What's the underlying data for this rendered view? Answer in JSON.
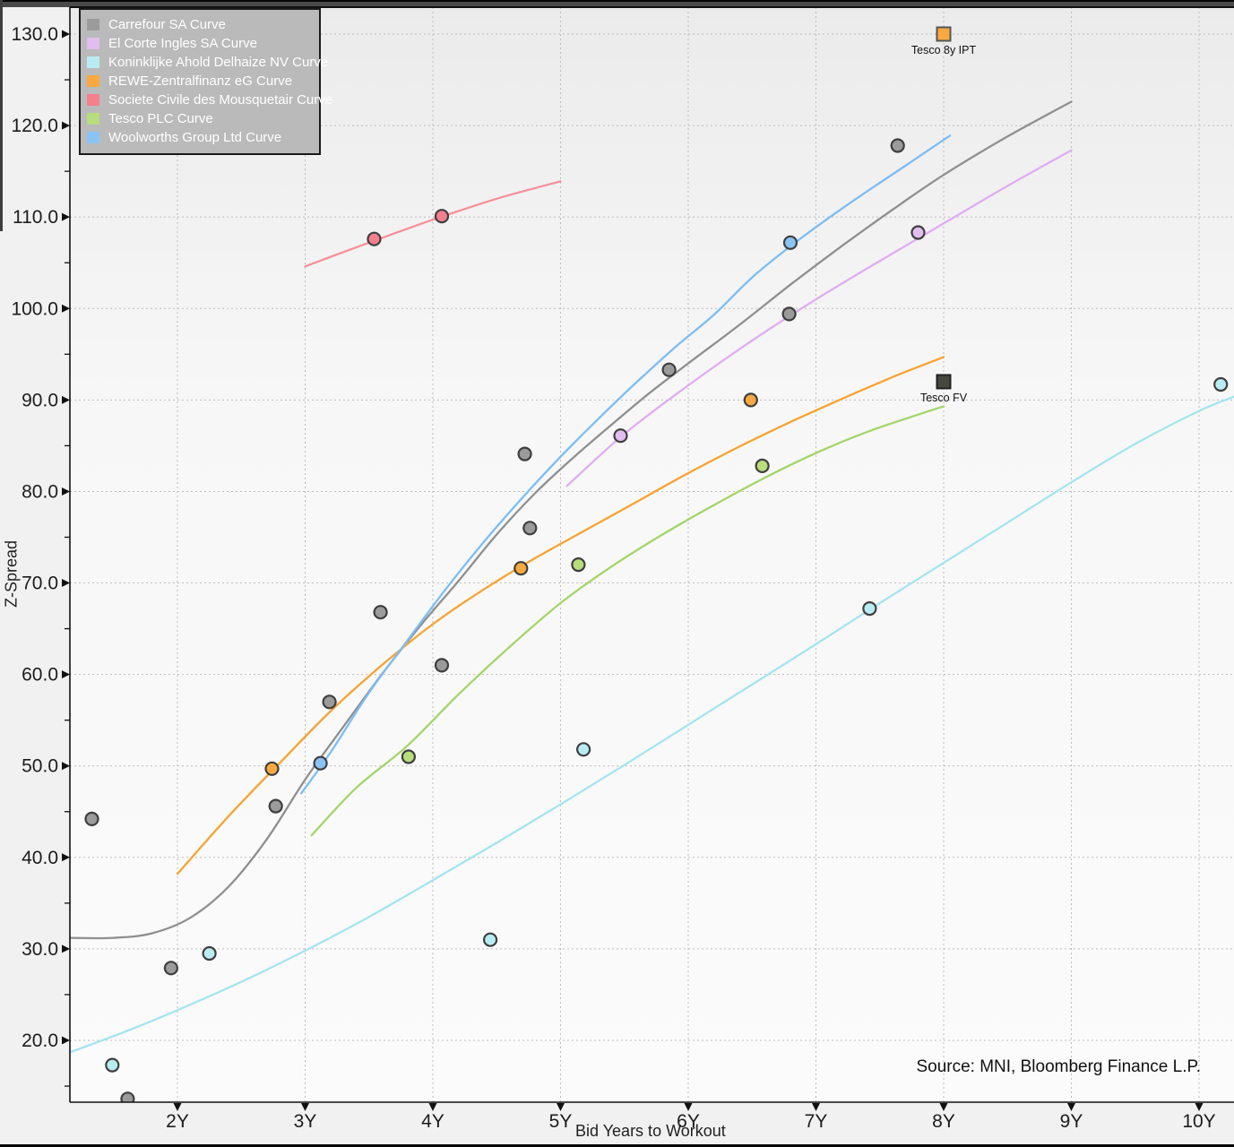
{
  "chart_data": {
    "type": "scatter",
    "title": "",
    "xlabel": "Bid Years to Workout",
    "ylabel": "Z-Spread",
    "source": "Source: MNI, Bloomberg Finance L.P.",
    "grid": true,
    "legend_position": "top-left",
    "xlim": [
      1.16,
      10.28
    ],
    "ylim": [
      13.2,
      132.9
    ],
    "x_ticks": [
      {
        "value": 2,
        "label": "2Y"
      },
      {
        "value": 3,
        "label": "3Y"
      },
      {
        "value": 4,
        "label": "4Y"
      },
      {
        "value": 5,
        "label": "5Y"
      },
      {
        "value": 6,
        "label": "6Y"
      },
      {
        "value": 7,
        "label": "7Y"
      },
      {
        "value": 8,
        "label": "8Y"
      },
      {
        "value": 9,
        "label": "9Y"
      },
      {
        "value": 10,
        "label": "10Y"
      }
    ],
    "y_ticks": [
      {
        "value": 20,
        "label": "20.0"
      },
      {
        "value": 30,
        "label": "30.0"
      },
      {
        "value": 40,
        "label": "40.0"
      },
      {
        "value": 50,
        "label": "50.0"
      },
      {
        "value": 60,
        "label": "60.0"
      },
      {
        "value": 70,
        "label": "70.0"
      },
      {
        "value": 80,
        "label": "80.0"
      },
      {
        "value": 90,
        "label": "90.0"
      },
      {
        "value": 100,
        "label": "100.0"
      },
      {
        "value": 110,
        "label": "110.0"
      },
      {
        "value": 120,
        "label": "120.0"
      },
      {
        "value": 130,
        "label": "130.0"
      }
    ],
    "y_minor_tick_step": 5,
    "series": [
      {
        "name": "Carrefour SA Curve",
        "marker_fill": "#9b9b9b",
        "line_color": "#8f8f8f",
        "points": [
          [
            1.33,
            44.2
          ],
          [
            1.61,
            13.6
          ],
          [
            1.95,
            27.9
          ],
          [
            2.77,
            45.6
          ],
          [
            3.19,
            57.0
          ],
          [
            3.59,
            66.8
          ],
          [
            4.07,
            61.0
          ],
          [
            4.72,
            84.1
          ],
          [
            4.76,
            76.0
          ],
          [
            5.85,
            93.3
          ],
          [
            6.79,
            99.4
          ],
          [
            7.64,
            117.8
          ]
        ],
        "curve": [
          [
            1.16,
            31.2
          ],
          [
            1.5,
            31.2
          ],
          [
            1.8,
            31.7
          ],
          [
            2.1,
            33.4
          ],
          [
            2.4,
            36.8
          ],
          [
            2.7,
            42.0
          ],
          [
            3.0,
            48.5
          ],
          [
            3.3,
            54.3
          ],
          [
            3.6,
            60.0
          ],
          [
            3.9,
            65.3
          ],
          [
            4.2,
            70.2
          ],
          [
            4.5,
            75.3
          ],
          [
            4.8,
            79.8
          ],
          [
            5.1,
            83.7
          ],
          [
            5.4,
            87.3
          ],
          [
            5.7,
            90.8
          ],
          [
            6.0,
            94.0
          ],
          [
            6.4,
            98.2
          ],
          [
            6.8,
            102.6
          ],
          [
            7.2,
            106.8
          ],
          [
            7.6,
            110.8
          ],
          [
            8.0,
            114.6
          ],
          [
            8.5,
            118.8
          ],
          [
            9.0,
            122.6
          ]
        ]
      },
      {
        "name": "El Corte Ingles SA Curve",
        "marker_fill": "#e2bdf0",
        "line_color": "#dfaef2",
        "points": [
          [
            5.47,
            86.1
          ],
          [
            7.8,
            108.3
          ]
        ],
        "curve": [
          [
            5.05,
            80.6
          ],
          [
            5.5,
            86.3
          ],
          [
            6.0,
            91.6
          ],
          [
            6.5,
            96.5
          ],
          [
            7.0,
            101.0
          ],
          [
            7.5,
            105.2
          ],
          [
            8.0,
            109.3
          ],
          [
            8.5,
            113.4
          ],
          [
            9.0,
            117.3
          ]
        ]
      },
      {
        "name": "Koninklijke Ahold Delhaize NV Curve",
        "marker_fill": "#b8ecf2",
        "line_color": "#a5e4f0",
        "points": [
          [
            1.49,
            17.3
          ],
          [
            2.25,
            29.5
          ],
          [
            4.45,
            31.0
          ],
          [
            5.18,
            51.8
          ],
          [
            7.42,
            67.2
          ],
          [
            10.17,
            91.7
          ]
        ],
        "curve": [
          [
            1.16,
            18.7
          ],
          [
            1.6,
            21.0
          ],
          [
            2.0,
            23.3
          ],
          [
            2.5,
            26.4
          ],
          [
            3.0,
            29.8
          ],
          [
            3.5,
            33.5
          ],
          [
            4.0,
            37.5
          ],
          [
            4.5,
            41.6
          ],
          [
            5.0,
            45.8
          ],
          [
            5.5,
            50.1
          ],
          [
            6.0,
            54.5
          ],
          [
            6.5,
            58.9
          ],
          [
            7.0,
            63.3
          ],
          [
            7.5,
            67.8
          ],
          [
            8.0,
            72.2
          ],
          [
            8.5,
            76.6
          ],
          [
            9.0,
            81.0
          ],
          [
            9.5,
            85.2
          ],
          [
            10.0,
            88.8
          ],
          [
            10.28,
            90.4
          ]
        ]
      },
      {
        "name": "REWE-Zentralfinanz eG Curve",
        "marker_fill": "#f9a93f",
        "line_color": "#f7a330",
        "points": [
          [
            2.74,
            49.7
          ],
          [
            4.69,
            71.6
          ],
          [
            6.49,
            90.0
          ]
        ],
        "curve": [
          [
            2.0,
            38.2
          ],
          [
            2.4,
            44.5
          ],
          [
            2.8,
            50.3
          ],
          [
            3.2,
            56.0
          ],
          [
            3.6,
            61.0
          ],
          [
            4.0,
            65.5
          ],
          [
            4.4,
            69.3
          ],
          [
            4.8,
            72.7
          ],
          [
            5.2,
            75.8
          ],
          [
            5.6,
            78.9
          ],
          [
            6.0,
            82.0
          ],
          [
            6.4,
            84.9
          ],
          [
            6.8,
            87.6
          ],
          [
            7.2,
            90.1
          ],
          [
            7.6,
            92.5
          ],
          [
            8.0,
            94.7
          ]
        ]
      },
      {
        "name": "Societe Civile des Mousquetair Curve",
        "marker_fill": "#f4808e",
        "line_color": "#f78f99",
        "points": [
          [
            3.54,
            107.6
          ],
          [
            4.07,
            110.1
          ]
        ],
        "curve": [
          [
            3.0,
            104.6
          ],
          [
            3.5,
            107.2
          ],
          [
            4.0,
            109.7
          ],
          [
            4.5,
            112.0
          ],
          [
            5.0,
            113.9
          ]
        ]
      },
      {
        "name": "Tesco PLC Curve",
        "marker_fill": "#b7dd7d",
        "line_color": "#a3d569",
        "points": [
          [
            3.81,
            51.0
          ],
          [
            5.14,
            72.0
          ],
          [
            6.58,
            82.8
          ]
        ],
        "curve": [
          [
            3.05,
            42.4
          ],
          [
            3.4,
            47.6
          ],
          [
            3.8,
            52.2
          ],
          [
            4.2,
            57.8
          ],
          [
            4.6,
            63.0
          ],
          [
            5.0,
            67.8
          ],
          [
            5.4,
            71.8
          ],
          [
            5.8,
            75.3
          ],
          [
            6.2,
            78.5
          ],
          [
            6.6,
            81.5
          ],
          [
            7.0,
            84.2
          ],
          [
            7.4,
            86.5
          ],
          [
            7.8,
            88.4
          ],
          [
            8.0,
            89.3
          ]
        ]
      },
      {
        "name": "Woolworths Group Ltd Curve",
        "marker_fill": "#8ac4f5",
        "line_color": "#7cbdf5",
        "points": [
          [
            3.12,
            50.3
          ],
          [
            6.8,
            107.2
          ]
        ],
        "curve": [
          [
            2.97,
            47.0
          ],
          [
            3.2,
            51.5
          ],
          [
            3.5,
            58.0
          ],
          [
            3.8,
            63.7
          ],
          [
            4.1,
            69.3
          ],
          [
            4.4,
            74.5
          ],
          [
            4.7,
            79.3
          ],
          [
            5.0,
            83.8
          ],
          [
            5.3,
            88.0
          ],
          [
            5.6,
            92.0
          ],
          [
            5.9,
            95.8
          ],
          [
            6.2,
            99.3
          ],
          [
            6.5,
            103.4
          ],
          [
            6.8,
            106.8
          ],
          [
            7.1,
            109.9
          ],
          [
            7.4,
            112.8
          ],
          [
            7.7,
            115.6
          ],
          [
            8.05,
            118.9
          ]
        ]
      }
    ],
    "annotations": [
      {
        "label": "Tesco 8y IPT",
        "x": 8.0,
        "y": 130.0,
        "marker": "square",
        "fill": "#f9a93f",
        "stroke": "#555555"
      },
      {
        "label": "Tesco FV",
        "x": 8.0,
        "y": 92.0,
        "marker": "square",
        "fill": "#474740",
        "stroke": "#222222"
      }
    ],
    "colors": {
      "axis": "#111111",
      "gridline": "#bdbdbd",
      "tick_label": "#1c1c1c",
      "marker_stroke": "#3e3e3e",
      "legend_bg": "#b8b8b8",
      "legend_text": "#ffffff"
    }
  }
}
